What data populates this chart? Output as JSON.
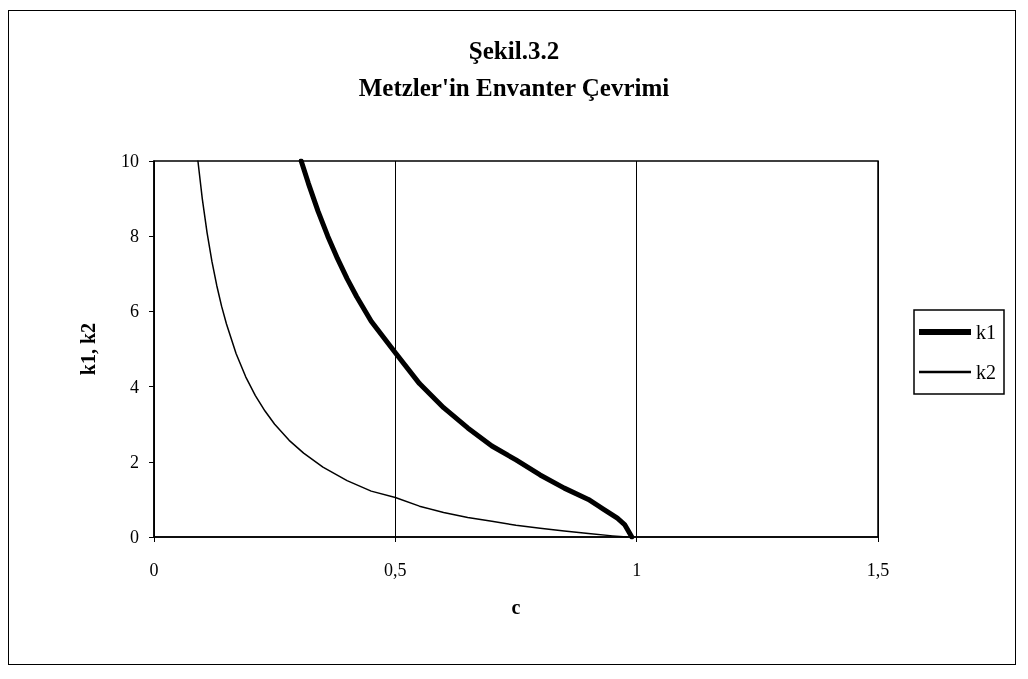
{
  "chart_data": {
    "type": "line",
    "title": "Şekil.3.2",
    "subtitle": "Metzler'in Envanter Çevrimi",
    "xlabel": "c",
    "ylabel": "k1, k2",
    "xlim": [
      0,
      1.5
    ],
    "xticks": [
      0,
      {
        "value": 0.5,
        "label": "0,5"
      },
      1,
      {
        "value": 1.5,
        "label": "1,5"
      }
    ],
    "ylim": [
      0,
      10
    ],
    "yticks": [
      0,
      2,
      4,
      6,
      8,
      10
    ],
    "grid": "x",
    "legend": "right",
    "series": [
      {
        "name": "k1",
        "color": "#000000",
        "x": [
          0.305,
          0.32,
          0.34,
          0.36,
          0.38,
          0.4,
          0.42,
          0.45,
          0.5,
          0.55,
          0.6,
          0.65,
          0.7,
          0.75,
          0.8,
          0.85,
          0.9,
          0.93,
          0.96,
          0.975,
          0.99
        ],
        "values": [
          10,
          9.4,
          8.66,
          8.0,
          7.41,
          6.87,
          6.39,
          5.74,
          4.9,
          4.08,
          3.44,
          2.9,
          2.42,
          2.05,
          1.65,
          1.3,
          1.0,
          0.75,
          0.5,
          0.33,
          0
        ]
      },
      {
        "name": "k2",
        "color": "#000000",
        "x": [
          0.091,
          0.1,
          0.11,
          0.12,
          0.13,
          0.14,
          0.15,
          0.17,
          0.19,
          0.21,
          0.23,
          0.25,
          0.28,
          0.31,
          0.35,
          0.4,
          0.45,
          0.5,
          0.55,
          0.6,
          0.65,
          0.7,
          0.75,
          0.8,
          0.85,
          0.9,
          0.95,
          0.98
        ],
        "values": [
          10,
          9.0,
          8.09,
          7.33,
          6.69,
          6.14,
          5.67,
          4.88,
          4.26,
          3.76,
          3.35,
          3.0,
          2.57,
          2.23,
          1.86,
          1.5,
          1.22,
          1.05,
          0.82,
          0.65,
          0.52,
          0.42,
          0.31,
          0.23,
          0.16,
          0.09,
          0.03,
          0
        ]
      }
    ]
  }
}
